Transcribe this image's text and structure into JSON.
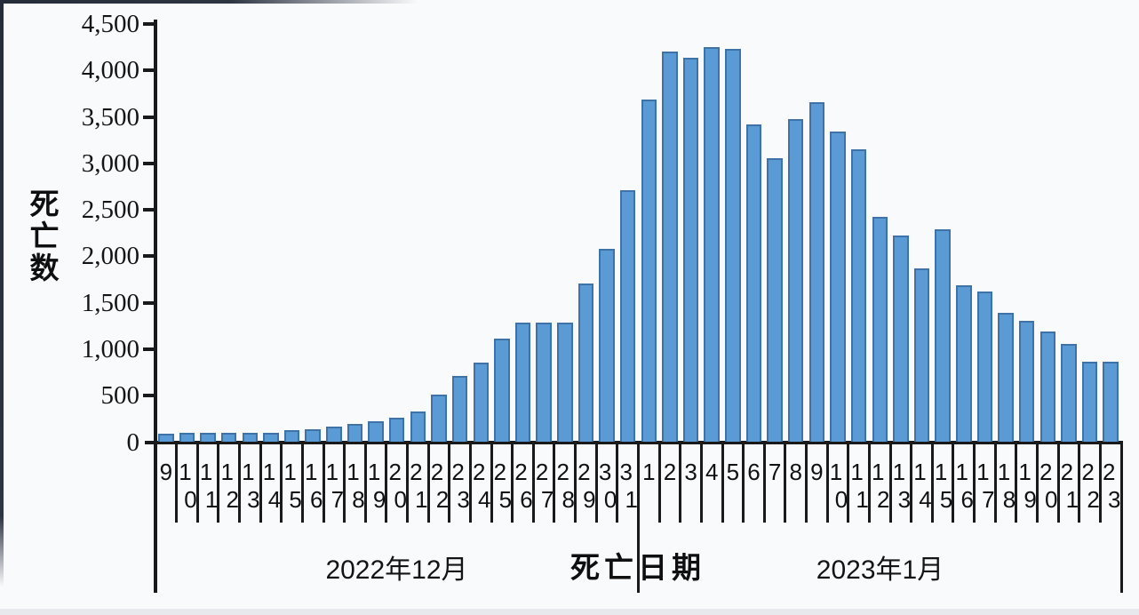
{
  "chart_data": {
    "type": "bar",
    "title": "",
    "ylabel": "死亡数",
    "xlabel": "死亡日期",
    "ylim": [
      0,
      4500
    ],
    "ytick_step": 500,
    "ytick_labels": [
      "0",
      "500",
      "1,000",
      "1,500",
      "2,000",
      "2,500",
      "3,000",
      "3,500",
      "4,000",
      "4,500"
    ],
    "grid": false,
    "legend": null,
    "bar_color": "#5b9bd5",
    "bar_border_color": "#3f73a8",
    "axis_color": "#1a1a1a",
    "categories": [
      "9",
      "10",
      "11",
      "12",
      "13",
      "14",
      "15",
      "16",
      "17",
      "18",
      "19",
      "20",
      "21",
      "22",
      "23",
      "24",
      "25",
      "26",
      "27",
      "28",
      "29",
      "30",
      "31",
      "1",
      "2",
      "3",
      "4",
      "5",
      "6",
      "7",
      "8",
      "9",
      "10",
      "11",
      "12",
      "13",
      "14",
      "15",
      "16",
      "17",
      "18",
      "19",
      "20",
      "21",
      "22",
      "23"
    ],
    "values": [
      90,
      100,
      105,
      105,
      100,
      105,
      125,
      140,
      165,
      195,
      220,
      265,
      330,
      515,
      715,
      855,
      1110,
      1285,
      1290,
      1290,
      1705,
      2080,
      2710,
      3690,
      4205,
      4140,
      4255,
      4230,
      3420,
      3055,
      3480,
      3660,
      3345,
      3155,
      2420,
      2225,
      1870,
      2290,
      1690,
      1625,
      1390,
      1310,
      1195,
      1060,
      865,
      865
    ],
    "groups": [
      {
        "label": "2022年12月",
        "start": 0,
        "count": 23
      },
      {
        "label": "2023年1月",
        "start": 23,
        "count": 23
      }
    ]
  }
}
